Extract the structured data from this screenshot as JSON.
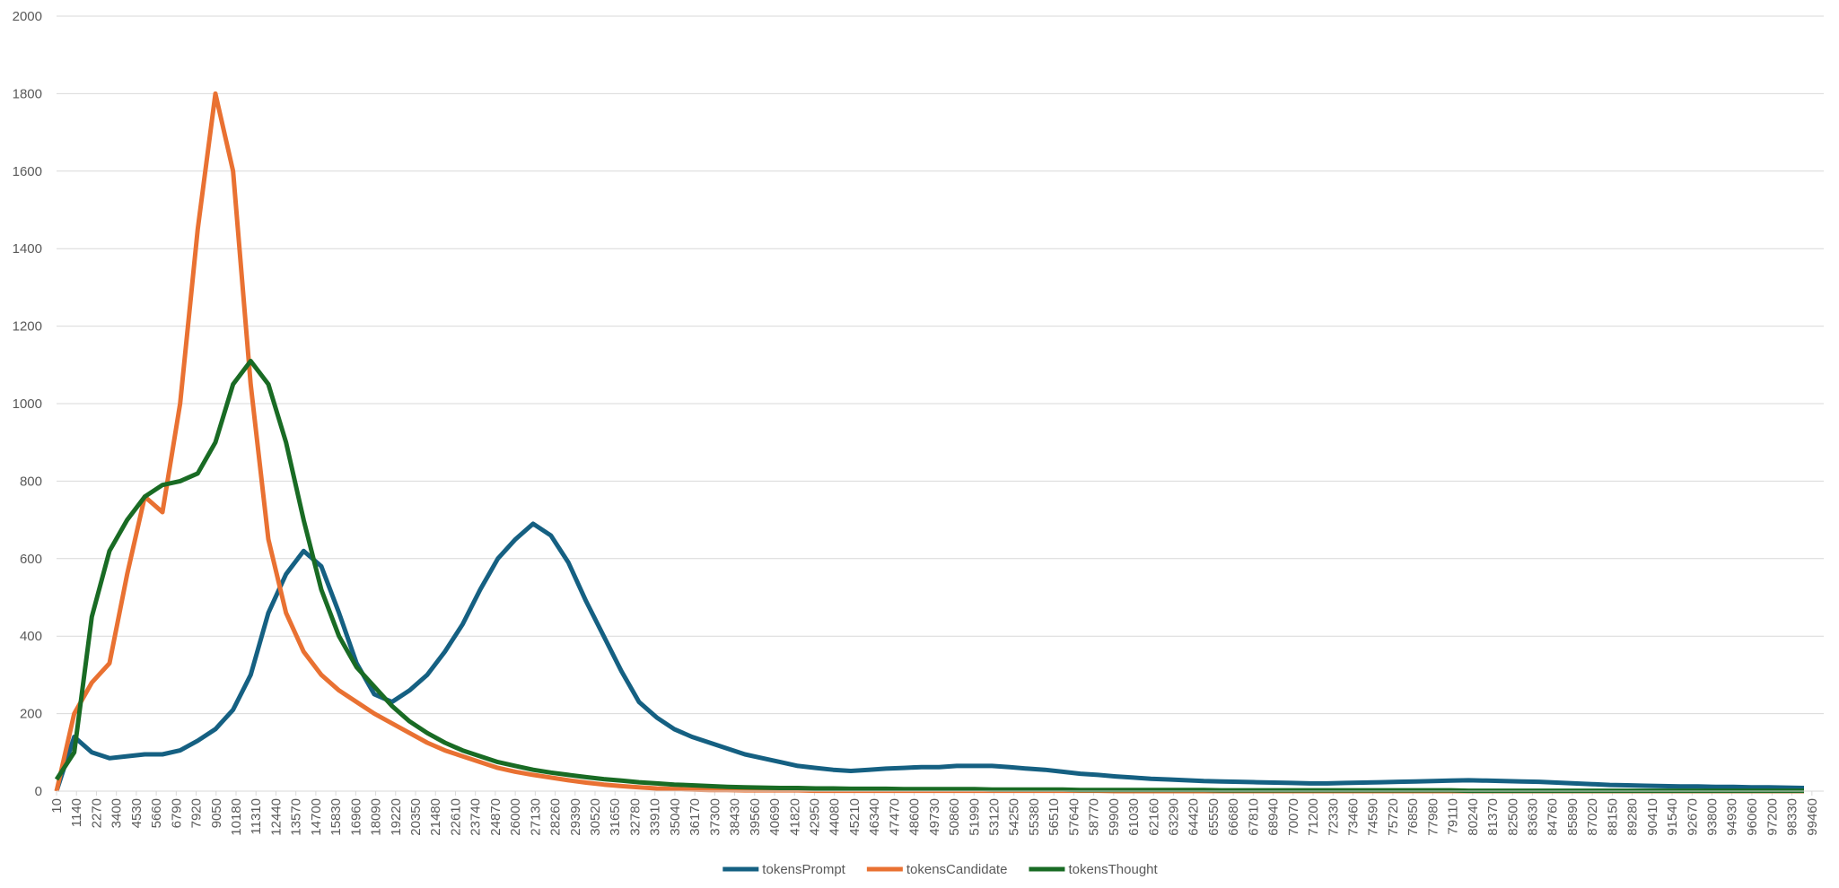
{
  "chart_data": {
    "type": "line",
    "x": [
      10,
      1010,
      2010,
      3010,
      4010,
      5010,
      6010,
      7010,
      8010,
      9010,
      10010,
      11010,
      12010,
      13010,
      14010,
      15010,
      16010,
      17010,
      18010,
      19010,
      20010,
      21010,
      22010,
      23010,
      24010,
      25010,
      26010,
      27010,
      28010,
      29010,
      30010,
      31010,
      32010,
      33010,
      34010,
      35010,
      36010,
      37010,
      38010,
      39010,
      40010,
      41010,
      42010,
      43010,
      44010,
      45010,
      46010,
      47010,
      48010,
      49010,
      50010,
      51010,
      52010,
      53010,
      54010,
      55010,
      56010,
      57010,
      58010,
      59010,
      60010,
      61010,
      62010,
      63010,
      64010,
      65010,
      66010,
      67010,
      68010,
      69010,
      70010,
      71010,
      72010,
      73010,
      74010,
      75010,
      76010,
      77010,
      78010,
      79010,
      80010,
      81010,
      82010,
      83010,
      84010,
      85010,
      86010,
      87010,
      88010,
      89010,
      90010,
      91010,
      92010,
      93010,
      94010,
      95010,
      96010,
      97010,
      98010,
      99010
    ],
    "series": [
      {
        "name": "tokensPrompt",
        "color": "#156082",
        "values": [
          0,
          140,
          100,
          85,
          90,
          95,
          95,
          105,
          130,
          160,
          210,
          300,
          460,
          560,
          620,
          580,
          460,
          330,
          250,
          230,
          260,
          300,
          360,
          430,
          520,
          600,
          650,
          690,
          660,
          590,
          490,
          400,
          310,
          230,
          190,
          160,
          140,
          125,
          110,
          95,
          85,
          75,
          65,
          60,
          55,
          52,
          55,
          58,
          60,
          62,
          62,
          65,
          65,
          65,
          62,
          58,
          55,
          50,
          45,
          42,
          38,
          35,
          32,
          30,
          28,
          26,
          25,
          24,
          23,
          22,
          21,
          20,
          20,
          21,
          22,
          23,
          24,
          25,
          26,
          27,
          28,
          27,
          26,
          25,
          24,
          22,
          20,
          18,
          16,
          15,
          14,
          13,
          12,
          12,
          11,
          11,
          10,
          10,
          9,
          8
        ]
      },
      {
        "name": "tokensCandidate",
        "color": "#e97132",
        "values": [
          0,
          200,
          280,
          330,
          560,
          760,
          720,
          1000,
          1450,
          1800,
          1600,
          1050,
          650,
          460,
          360,
          300,
          260,
          230,
          200,
          175,
          150,
          125,
          105,
          90,
          75,
          60,
          50,
          42,
          35,
          28,
          22,
          17,
          13,
          10,
          7,
          5,
          4,
          3,
          3,
          2,
          2,
          2,
          2,
          1,
          1,
          1,
          1,
          1,
          1,
          1,
          1,
          1,
          1,
          1,
          1,
          1,
          1,
          1,
          1,
          1,
          0,
          0,
          0,
          0,
          0,
          0,
          0,
          0,
          0,
          0,
          0,
          0,
          0,
          0,
          0,
          0,
          0,
          0,
          0,
          0,
          0,
          0,
          0,
          0,
          0,
          0,
          0,
          0,
          0,
          0,
          0,
          0,
          0,
          0,
          0,
          0,
          0,
          0,
          0,
          0
        ]
      },
      {
        "name": "tokensThought",
        "color": "#196b24",
        "values": [
          30,
          100,
          450,
          620,
          700,
          760,
          790,
          800,
          820,
          900,
          1050,
          1110,
          1050,
          900,
          700,
          520,
          400,
          320,
          270,
          220,
          180,
          150,
          125,
          105,
          90,
          75,
          65,
          55,
          48,
          42,
          36,
          31,
          27,
          23,
          20,
          17,
          15,
          13,
          11,
          10,
          9,
          8,
          8,
          7,
          7,
          6,
          6,
          6,
          5,
          5,
          5,
          5,
          5,
          4,
          4,
          4,
          4,
          4,
          3,
          3,
          3,
          3,
          3,
          3,
          3,
          3,
          2,
          2,
          2,
          2,
          2,
          2,
          2,
          2,
          2,
          2,
          2,
          2,
          2,
          2,
          1,
          1,
          1,
          1,
          1,
          1,
          1,
          1,
          1,
          1,
          1,
          1,
          1,
          1,
          1,
          1,
          1,
          1,
          1,
          1
        ]
      }
    ],
    "xlim": [
      10,
      100130
    ],
    "xticks": [
      10,
      1140,
      2270,
      3400,
      4530,
      5660,
      6790,
      7920,
      9050,
      10180,
      11310,
      12440,
      13570,
      14700,
      15830,
      16960,
      18090,
      19220,
      20350,
      21480,
      22610,
      23740,
      24870,
      26000,
      27130,
      28260,
      29390,
      30520,
      31650,
      32780,
      33910,
      35040,
      36170,
      37300,
      38430,
      39560,
      40690,
      41820,
      42950,
      44080,
      45210,
      46340,
      47470,
      48600,
      49730,
      50860,
      51990,
      53120,
      54250,
      55380,
      56510,
      57640,
      58770,
      59900,
      61030,
      62160,
      63290,
      64420,
      65550,
      66680,
      67810,
      68940,
      70070,
      71200,
      72330,
      73460,
      74590,
      75720,
      76850,
      77980,
      79110,
      80240,
      81370,
      82500,
      83630,
      84760,
      85890,
      87020,
      88150,
      89280,
      90410,
      91540,
      92670,
      93800,
      94930,
      96060,
      97200,
      98330,
      99460
    ],
    "ylim": [
      0,
      2000
    ],
    "yticks": [
      0,
      200,
      400,
      600,
      800,
      1000,
      1200,
      1400,
      1600,
      1800,
      2000
    ],
    "grid": true,
    "legend": "bottom"
  }
}
